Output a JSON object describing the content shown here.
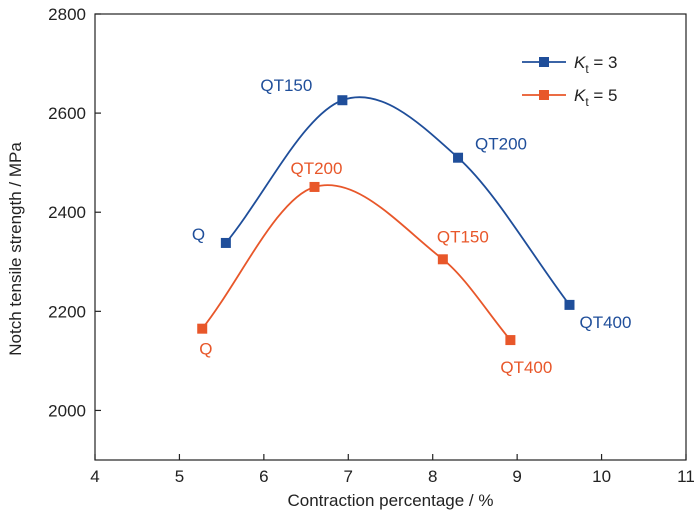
{
  "chart_data": {
    "type": "line",
    "title": "",
    "xlabel": "Contraction percentage / %",
    "ylabel": "Notch tensile strength / MPa",
    "xlim": [
      4,
      11
    ],
    "ylim": [
      1900,
      2800
    ],
    "x_ticks": [
      "4",
      "5",
      "6",
      "7",
      "8",
      "9",
      "10",
      "11"
    ],
    "y_ticks": [
      "2000",
      "2200",
      "2400",
      "2600",
      "2800"
    ],
    "legend_position": "top-right",
    "grid": false,
    "series": [
      {
        "name_main": "K",
        "name_sub": "t",
        "name_rest": " = 3",
        "color": "#1f4e9a",
        "curve": "smooth",
        "points": [
          {
            "x": 5.55,
            "y": 2338,
            "label": "Q"
          },
          {
            "x": 6.93,
            "y": 2626,
            "label": "QT150"
          },
          {
            "x": 8.3,
            "y": 2510,
            "label": "QT200"
          },
          {
            "x": 9.62,
            "y": 2213,
            "label": "QT400"
          }
        ]
      },
      {
        "name_main": "K",
        "name_sub": "t",
        "name_rest": " = 5",
        "color": "#e8572a",
        "curve": "smooth",
        "points": [
          {
            "x": 5.27,
            "y": 2165,
            "label": "Q"
          },
          {
            "x": 6.6,
            "y": 2451,
            "label": "QT200"
          },
          {
            "x": 8.12,
            "y": 2305,
            "label": "QT150"
          },
          {
            "x": 8.92,
            "y": 2142,
            "label": "QT400"
          }
        ]
      }
    ]
  }
}
